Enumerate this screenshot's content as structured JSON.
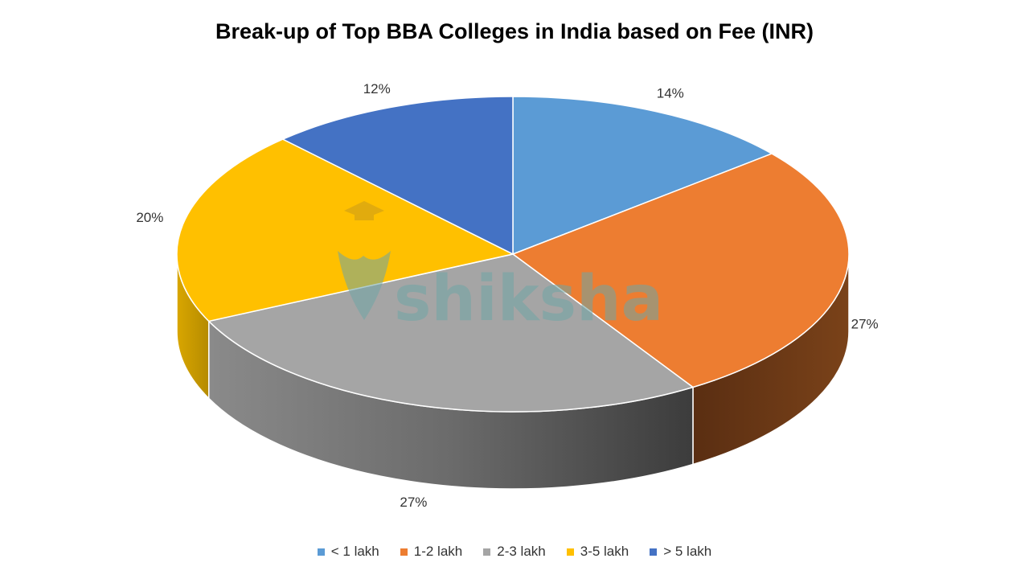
{
  "chart_data": {
    "type": "pie",
    "title": "Break-up of Top BBA Colleges in India based on Fee (INR)",
    "three_d": true,
    "categories": [
      "< 1 lakh",
      "1-2 lakh",
      "2-3 lakh",
      "3-5 lakh",
      "> 5 lakh"
    ],
    "values": [
      14,
      27,
      27,
      20,
      12
    ],
    "data_labels": [
      "14%",
      "27%",
      "27%",
      "20%",
      "12%"
    ],
    "colors": [
      "#5b9bd5",
      "#ed7d31",
      "#a5a5a5",
      "#ffc000",
      "#4472c4"
    ],
    "side_colors": [
      "#3a6ea8",
      "#613317",
      "#5a5a5a",
      "#c49a00",
      "#2c4f94"
    ],
    "legend_position": "bottom",
    "watermark": "shiksha"
  }
}
